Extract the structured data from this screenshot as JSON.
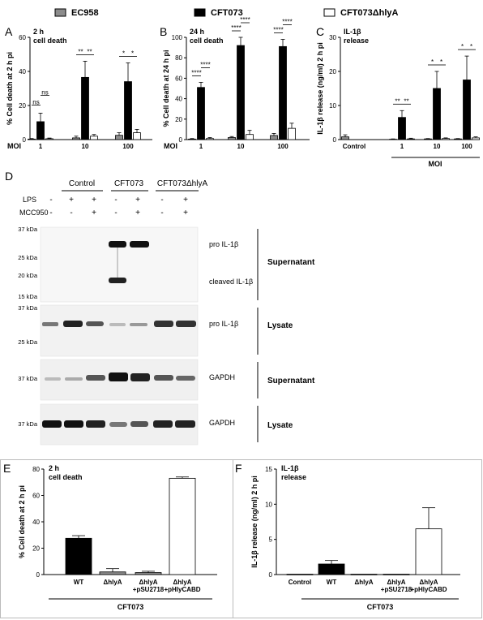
{
  "legend": [
    {
      "label": "EC958",
      "fill": "#8c8c8c"
    },
    {
      "label": "CFT073",
      "fill": "#000000"
    },
    {
      "label": "CFT073ΔhlyA",
      "fill": "#ffffff"
    }
  ],
  "chart_data": [
    {
      "panel": "A",
      "type": "bar",
      "title": "2 h\ncell death",
      "ylabel": "% Cell death at 2 h pi",
      "xlabel": "MOI",
      "categories": [
        "1",
        "10",
        "100"
      ],
      "ylim": [
        0,
        60
      ],
      "yticks": [
        0,
        20,
        40,
        60
      ],
      "series": [
        {
          "name": "EC958",
          "values": [
            0.3,
            1.0,
            2.5
          ],
          "err": [
            0.3,
            1.0,
            1.5
          ]
        },
        {
          "name": "CFT073",
          "values": [
            10.5,
            36.5,
            34.0
          ],
          "err": [
            5.0,
            9.5,
            11.0
          ]
        },
        {
          "name": "CFT073ΔhlyA",
          "values": [
            0.5,
            2.0,
            4.0
          ],
          "err": [
            0.4,
            1.0,
            2.0
          ]
        }
      ],
      "sig": [
        {
          "label": "ns",
          "from": 0,
          "to": 1,
          "group": 0,
          "level": 0
        },
        {
          "label": "ns",
          "from": 1,
          "to": 2,
          "group": 0,
          "level": 1
        },
        {
          "label": "**",
          "from": 0,
          "to": 1,
          "group": 1,
          "level": 0
        },
        {
          "label": "**",
          "from": 1,
          "to": 2,
          "group": 1,
          "level": 0
        },
        {
          "label": "*",
          "from": 0,
          "to": 1,
          "group": 2,
          "level": 0
        },
        {
          "label": "*",
          "from": 1,
          "to": 2,
          "group": 2,
          "level": 0
        }
      ]
    },
    {
      "panel": "B",
      "type": "bar",
      "title": "24 h\ncell death",
      "ylabel": "% Cell death at 24 h pi",
      "xlabel": "MOI",
      "categories": [
        "1",
        "10",
        "100"
      ],
      "ylim": [
        0,
        100
      ],
      "yticks": [
        0,
        20,
        40,
        60,
        80,
        100
      ],
      "series": [
        {
          "name": "EC958",
          "values": [
            0.5,
            2.0,
            4.0
          ],
          "err": [
            0.5,
            1.0,
            2.0
          ]
        },
        {
          "name": "CFT073",
          "values": [
            51,
            92,
            91
          ],
          "err": [
            5,
            8,
            7
          ]
        },
        {
          "name": "CFT073ΔhlyA",
          "values": [
            1.0,
            5.0,
            11.0
          ],
          "err": [
            1.0,
            4.0,
            5.0
          ]
        }
      ],
      "sig": [
        {
          "label": "****",
          "from": 0,
          "to": 1,
          "group": 0,
          "level": 0
        },
        {
          "label": "****",
          "from": 1,
          "to": 2,
          "group": 0,
          "level": 1
        },
        {
          "label": "****",
          "from": 0,
          "to": 1,
          "group": 1,
          "level": 0
        },
        {
          "label": "****",
          "from": 1,
          "to": 2,
          "group": 1,
          "level": 1
        },
        {
          "label": "****",
          "from": 0,
          "to": 1,
          "group": 2,
          "level": 0
        },
        {
          "label": "****",
          "from": 1,
          "to": 2,
          "group": 2,
          "level": 1
        }
      ]
    },
    {
      "panel": "C",
      "type": "bar",
      "title": "IL-1β\nrelease",
      "ylabel": "IL-1β release (ng/ml) 2 h pi",
      "xlabel": "MOI",
      "categories": [
        "Control",
        "1",
        "10",
        "100"
      ],
      "ylim": [
        0,
        30
      ],
      "yticks": [
        0,
        10,
        20,
        30
      ],
      "series": [
        {
          "name": "EC958",
          "values": [
            0.8,
            0.1,
            0.2,
            0.2
          ],
          "err": [
            0.6,
            0.1,
            0.1,
            0.1
          ]
        },
        {
          "name": "CFT073",
          "values": [
            0,
            6.5,
            15.0,
            17.5
          ],
          "err": [
            0,
            2.0,
            5.0,
            7.0
          ]
        },
        {
          "name": "CFT073ΔhlyA",
          "values": [
            0,
            0.2,
            0.3,
            0.5
          ],
          "err": [
            0,
            0.2,
            0.2,
            0.3
          ]
        }
      ],
      "sig": [
        {
          "label": "**",
          "from": 0,
          "to": 1,
          "group": 1,
          "level": 0
        },
        {
          "label": "**",
          "from": 1,
          "to": 2,
          "group": 1,
          "level": 0
        },
        {
          "label": "*",
          "from": 0,
          "to": 1,
          "group": 2,
          "level": 0
        },
        {
          "label": "*",
          "from": 1,
          "to": 2,
          "group": 2,
          "level": 0
        },
        {
          "label": "*",
          "from": 0,
          "to": 1,
          "group": 3,
          "level": 0
        },
        {
          "label": "*",
          "from": 1,
          "to": 2,
          "group": 3,
          "level": 0
        }
      ]
    },
    {
      "panel": "E",
      "type": "bar",
      "title": "2 h\ncell death",
      "ylabel": "% Cell death at 2 h pi",
      "xlabel": "CFT073",
      "categories": [
        "WT",
        "ΔhlyA",
        "ΔhlyA\n+pSU2718",
        "ΔhlyA\n+pHlyCABD"
      ],
      "ylim": [
        0,
        80
      ],
      "yticks": [
        0,
        20,
        40,
        60,
        80
      ],
      "values": [
        27.5,
        2.0,
        1.5,
        73.0
      ],
      "err": [
        2.0,
        2.5,
        1.0,
        1.0
      ],
      "fills": [
        "#000000",
        "#8c8c8c",
        "#8c8c8c",
        "#ffffff"
      ]
    },
    {
      "panel": "F",
      "type": "bar",
      "title": "IL-1β\nrelease",
      "ylabel": "IL-1β release (ng/ml) 2 h pi",
      "xlabel": "CFT073",
      "categories": [
        "Control",
        "WT",
        "ΔhlyA",
        "ΔhlyA\n+pSU2718",
        "ΔhlyA\n+pHlyCABD"
      ],
      "ylim": [
        0,
        15
      ],
      "yticks": [
        0,
        5,
        10,
        15
      ],
      "values": [
        0.05,
        1.5,
        0.05,
        0.05,
        6.5
      ],
      "err": [
        0,
        0.5,
        0,
        0,
        3.0
      ],
      "fills": [
        "#000000",
        "#000000",
        "#000000",
        "#000000",
        "#ffffff"
      ]
    }
  ],
  "panelD": {
    "letter": "D",
    "groups": [
      "Control",
      "CFT073",
      "CFT073ΔhlyA"
    ],
    "row_labels": [
      "LPS",
      "MCC950"
    ],
    "lps": [
      "-",
      "+",
      "+",
      "-",
      "+",
      "-",
      "+"
    ],
    "mcc": [
      "-",
      "-",
      "+",
      "-",
      "+",
      "-",
      "+"
    ],
    "markers": {
      "b1": [
        "37 kDa",
        "25 kDa",
        "20 kDa",
        "15 kDa"
      ],
      "b2": [
        "37 kDa",
        "25 kDa"
      ],
      "b3": [
        "37 kDa"
      ],
      "b4": [
        "37 kDa"
      ]
    },
    "bands": {
      "b1a": "pro IL-1β",
      "b1b": "cleaved IL-1β",
      "b2": "pro IL-1β",
      "b3": "GAPDH",
      "b4": "GAPDH"
    },
    "fractions": [
      "Supernatant",
      "Lysate",
      "Supernatant",
      "Lysate"
    ]
  },
  "letters": {
    "A": "A",
    "B": "B",
    "C": "C",
    "E": "E",
    "F": "F"
  }
}
